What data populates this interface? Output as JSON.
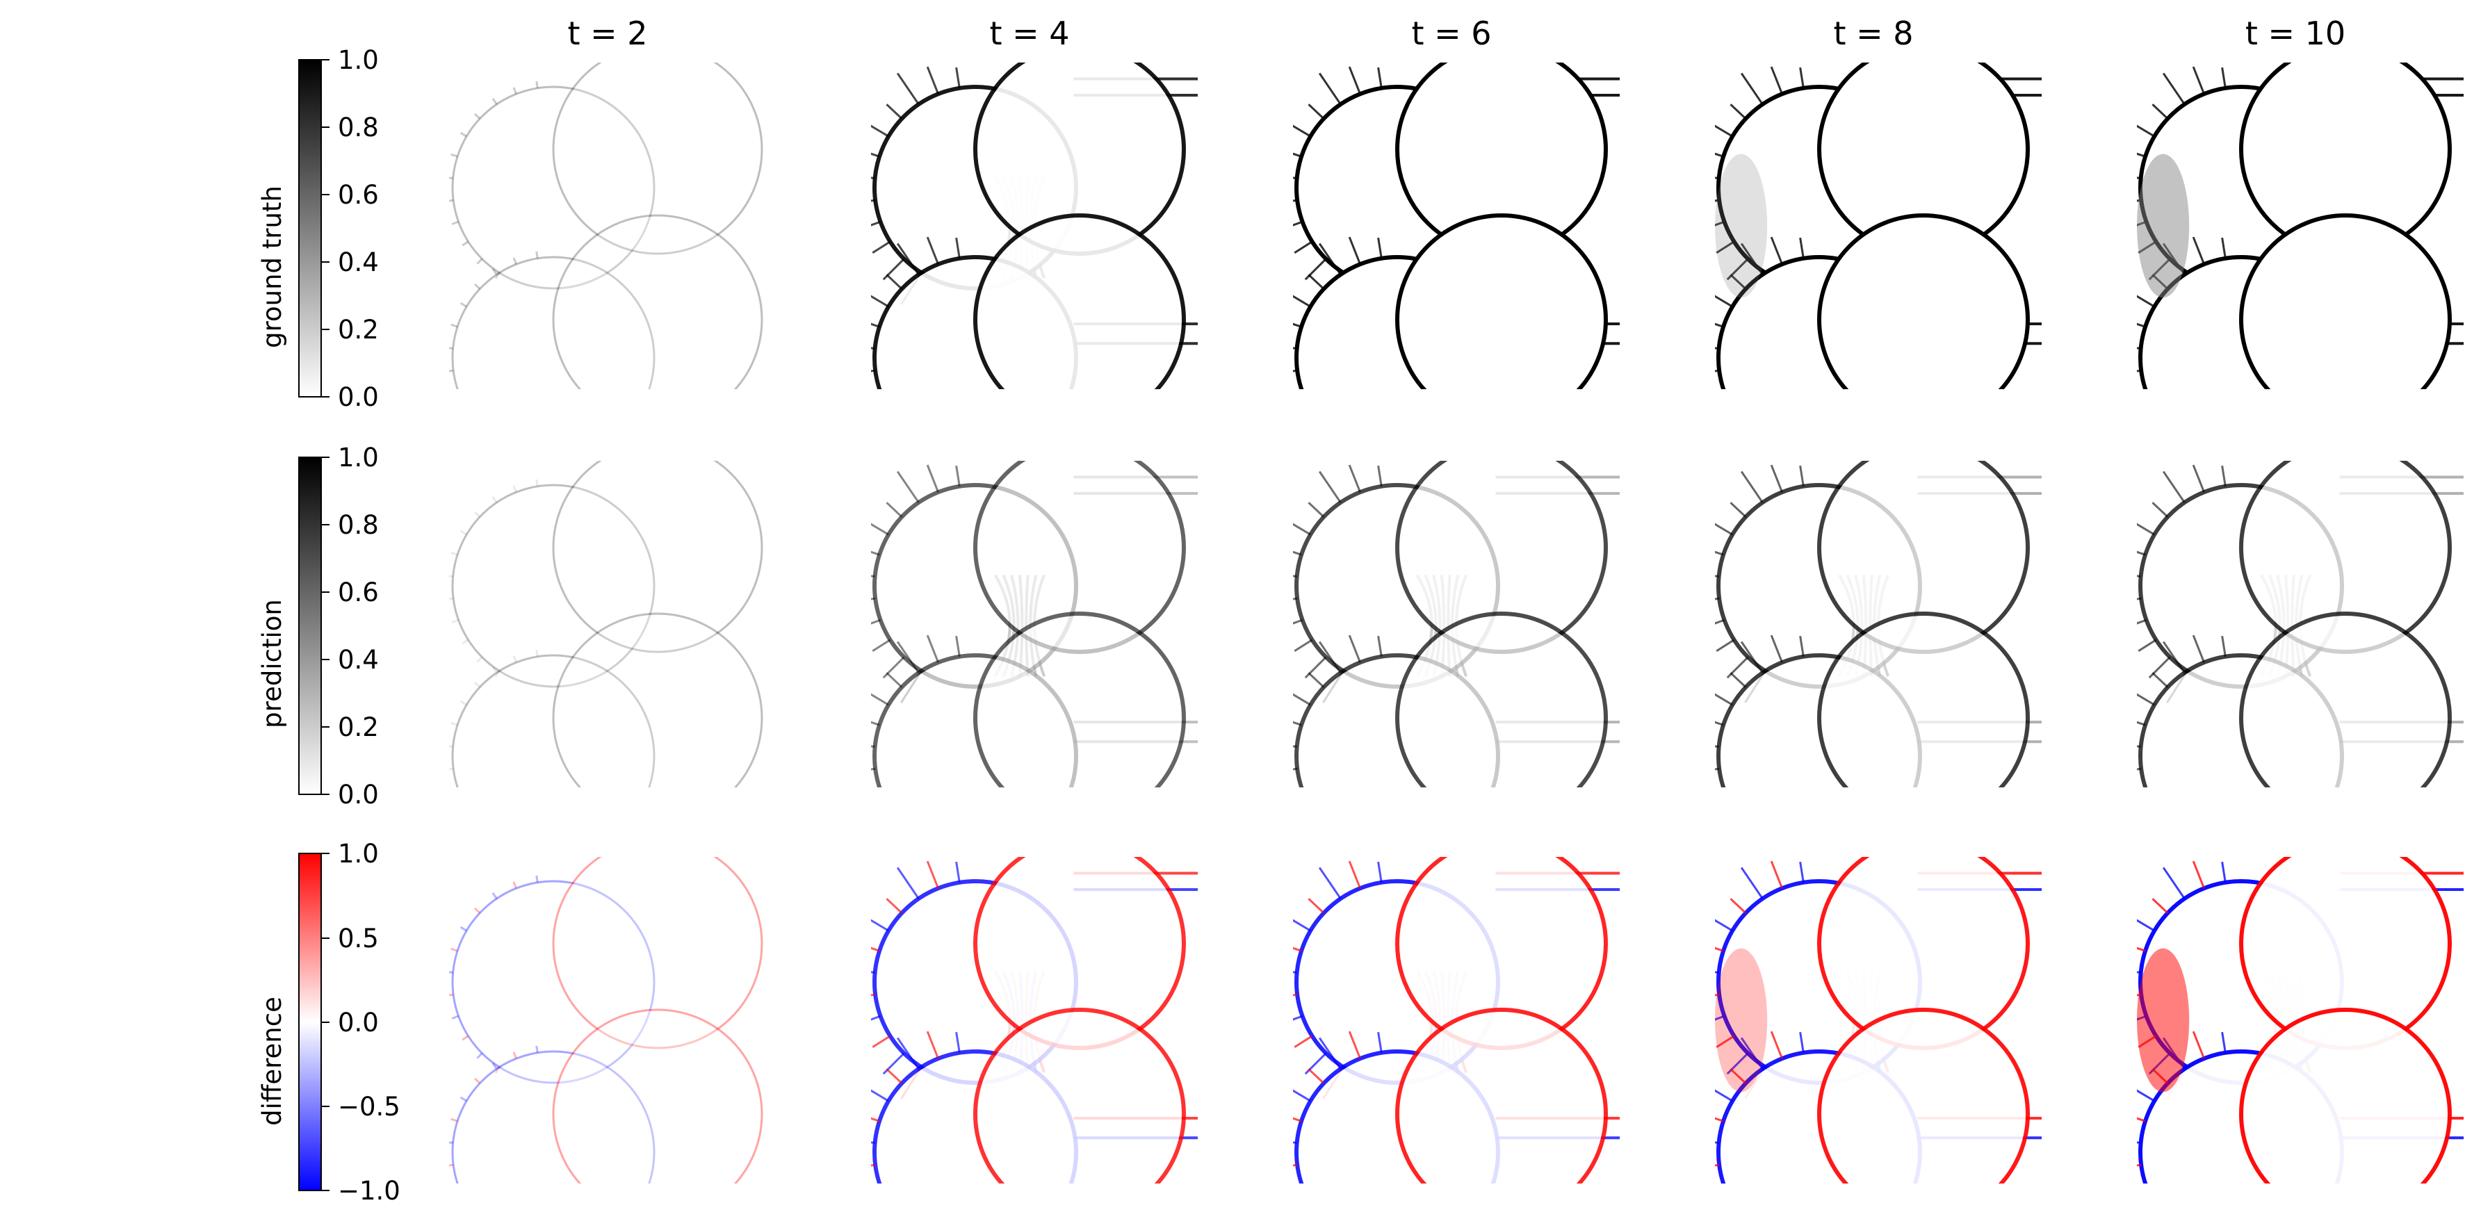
{
  "chart_data": {
    "type": "heatmap",
    "layout": "3 rows x 5 columns of image panels, each row with its own colorbar",
    "columns": [
      "t = 2",
      "t = 4",
      "t = 6",
      "t = 8",
      "t = 10"
    ],
    "rows": [
      {
        "label": "ground truth",
        "colormap": "gray_r",
        "range": [
          0.0,
          1.0
        ],
        "ticks": [
          "0.0",
          "0.2",
          "0.4",
          "0.6",
          "0.8",
          "1.0"
        ],
        "tick_values": [
          0.0,
          0.2,
          0.4,
          0.6,
          0.8,
          1.0
        ]
      },
      {
        "label": "prediction",
        "colormap": "gray_r",
        "range": [
          0.0,
          1.0
        ],
        "ticks": [
          "0.0",
          "0.2",
          "0.4",
          "0.6",
          "0.8",
          "1.0"
        ],
        "tick_values": [
          0.0,
          0.2,
          0.4,
          0.6,
          0.8,
          1.0
        ]
      },
      {
        "label": "difference",
        "colormap": "bwr",
        "range": [
          -1.0,
          1.0
        ],
        "ticks": [
          "−1.0",
          "−0.5",
          "0.0",
          "0.5",
          "1.0"
        ],
        "tick_values": [
          -1.0,
          -0.5,
          0.0,
          0.5,
          1.0
        ]
      }
    ],
    "panel_intensity": {
      "ground_truth": [
        0.25,
        0.9,
        1.0,
        1.0,
        1.0
      ],
      "prediction": [
        0.1,
        0.6,
        0.7,
        0.75,
        0.75
      ],
      "difference": [
        0.35,
        0.8,
        0.85,
        0.9,
        0.95
      ]
    },
    "colors": {
      "low": "#0000ff",
      "mid": "#ffffff",
      "high": "#ff0000",
      "ink": "#000000"
    }
  }
}
